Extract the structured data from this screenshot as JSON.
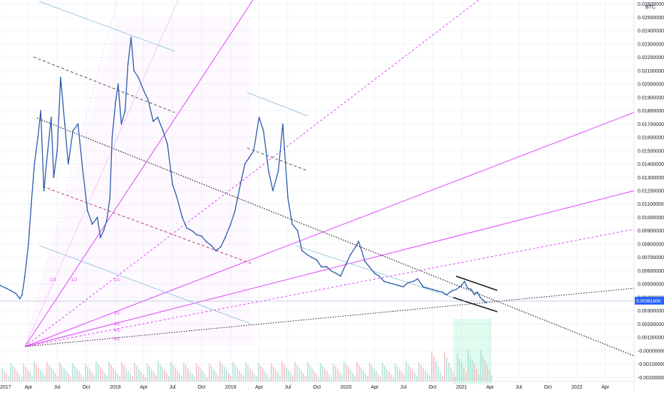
{
  "chart_data": {
    "type": "line",
    "title": "",
    "xlabel": "",
    "ylabel": "",
    "currency": "BTC",
    "ylim": [
      -0.0023,
      0.0263
    ],
    "xlim": [
      "2017-01-01",
      "2022-07-01"
    ],
    "last_price_label": "0.00361600",
    "grid": true,
    "legend": "none",
    "x_ticks": [
      {
        "date": "2017-01-01",
        "label": "2017"
      },
      {
        "date": "2017-04-01",
        "label": "Apr"
      },
      {
        "date": "2017-07-01",
        "label": "Jul"
      },
      {
        "date": "2017-10-01",
        "label": "Oct"
      },
      {
        "date": "2018-01-01",
        "label": "2018"
      },
      {
        "date": "2018-04-01",
        "label": "Apr"
      },
      {
        "date": "2018-07-01",
        "label": "Jul"
      },
      {
        "date": "2018-10-01",
        "label": "Oct"
      },
      {
        "date": "2019-01-01",
        "label": "2019"
      },
      {
        "date": "2019-04-01",
        "label": "Apr"
      },
      {
        "date": "2019-07-01",
        "label": "Jul"
      },
      {
        "date": "2019-10-01",
        "label": "Oct"
      },
      {
        "date": "2020-01-01",
        "label": "2020"
      },
      {
        "date": "2020-04-01",
        "label": "Apr"
      },
      {
        "date": "2020-07-01",
        "label": "Jul"
      },
      {
        "date": "2020-10-01",
        "label": "Oct"
      },
      {
        "date": "2021-01-01",
        "label": "2021"
      },
      {
        "date": "2021-04-01",
        "label": "Apr"
      },
      {
        "date": "2021-07-01",
        "label": "Jul"
      },
      {
        "date": "2021-10-01",
        "label": "Oct"
      },
      {
        "date": "2022-01-01",
        "label": "2022"
      },
      {
        "date": "2022-04-01",
        "label": "Apr"
      }
    ],
    "y_ticks": [
      {
        "value": 0.026,
        "label": "0.02600000"
      },
      {
        "value": 0.025,
        "label": "0.02500000"
      },
      {
        "value": 0.024,
        "label": "0.02400000"
      },
      {
        "value": 0.023,
        "label": "0.02300000"
      },
      {
        "value": 0.022,
        "label": "0.02200000"
      },
      {
        "value": 0.021,
        "label": "0.02100000"
      },
      {
        "value": 0.02,
        "label": "0.02000000"
      },
      {
        "value": 0.019,
        "label": "0.01900000"
      },
      {
        "value": 0.018,
        "label": "0.01800000"
      },
      {
        "value": 0.017,
        "label": "0.01700000"
      },
      {
        "value": 0.016,
        "label": "0.01600000"
      },
      {
        "value": 0.015,
        "label": "0.01500000"
      },
      {
        "value": 0.014,
        "label": "0.01400000"
      },
      {
        "value": 0.013,
        "label": "0.01300000"
      },
      {
        "value": 0.012,
        "label": "0.01200000"
      },
      {
        "value": 0.011,
        "label": "0.01100000"
      },
      {
        "value": 0.01,
        "label": "0.01000000"
      },
      {
        "value": 0.009,
        "label": "0.00900000"
      },
      {
        "value": 0.008,
        "label": "0.00800000"
      },
      {
        "value": 0.007,
        "label": "0.00700000"
      },
      {
        "value": 0.006,
        "label": "0.00600000"
      },
      {
        "value": 0.005,
        "label": "0.00500000"
      },
      {
        "value": 0.004,
        "label": "0.00400000"
      },
      {
        "value": 0.003,
        "label": "0.00300000"
      },
      {
        "value": 0.002,
        "label": "0.00200000"
      },
      {
        "value": 0.001,
        "label": "0.00100000"
      },
      {
        "value": 0.0,
        "label": "-0.00000000"
      },
      {
        "value": -0.001,
        "label": "-0.00100000"
      },
      {
        "value": -0.002,
        "label": "-0.00200000"
      }
    ],
    "series": [
      {
        "color": "#2a5aa8",
        "points": [
          {
            "x": "2017-01-01",
            "y": 0.0049
          },
          {
            "x": "2017-01-20",
            "y": 0.0047
          },
          {
            "x": "2017-02-05",
            "y": 0.0045
          },
          {
            "x": "2017-02-20",
            "y": 0.0043
          },
          {
            "x": "2017-03-05",
            "y": 0.0039
          },
          {
            "x": "2017-03-12",
            "y": 0.0042
          },
          {
            "x": "2017-03-20",
            "y": 0.0055
          },
          {
            "x": "2017-04-01",
            "y": 0.008
          },
          {
            "x": "2017-04-10",
            "y": 0.011
          },
          {
            "x": "2017-04-20",
            "y": 0.014
          },
          {
            "x": "2017-05-01",
            "y": 0.016
          },
          {
            "x": "2017-05-10",
            "y": 0.018
          },
          {
            "x": "2017-05-20",
            "y": 0.012
          },
          {
            "x": "2017-06-01",
            "y": 0.015
          },
          {
            "x": "2017-06-12",
            "y": 0.0175
          },
          {
            "x": "2017-06-20",
            "y": 0.013
          },
          {
            "x": "2017-07-01",
            "y": 0.015
          },
          {
            "x": "2017-07-12",
            "y": 0.0205
          },
          {
            "x": "2017-07-25",
            "y": 0.017
          },
          {
            "x": "2017-08-05",
            "y": 0.014
          },
          {
            "x": "2017-08-20",
            "y": 0.0165
          },
          {
            "x": "2017-09-05",
            "y": 0.017
          },
          {
            "x": "2017-09-20",
            "y": 0.0135
          },
          {
            "x": "2017-10-05",
            "y": 0.0105
          },
          {
            "x": "2017-10-20",
            "y": 0.0095
          },
          {
            "x": "2017-11-05",
            "y": 0.01
          },
          {
            "x": "2017-11-15",
            "y": 0.0085
          },
          {
            "x": "2017-11-25",
            "y": 0.009
          },
          {
            "x": "2017-12-05",
            "y": 0.0098
          },
          {
            "x": "2017-12-15",
            "y": 0.0115
          },
          {
            "x": "2017-12-22",
            "y": 0.016
          },
          {
            "x": "2018-01-01",
            "y": 0.0185
          },
          {
            "x": "2018-01-10",
            "y": 0.02
          },
          {
            "x": "2018-01-20",
            "y": 0.017
          },
          {
            "x": "2018-02-01",
            "y": 0.018
          },
          {
            "x": "2018-02-10",
            "y": 0.0215
          },
          {
            "x": "2018-02-20",
            "y": 0.0235
          },
          {
            "x": "2018-03-01",
            "y": 0.021
          },
          {
            "x": "2018-03-15",
            "y": 0.0205
          },
          {
            "x": "2018-04-01",
            "y": 0.0195
          },
          {
            "x": "2018-04-15",
            "y": 0.0188
          },
          {
            "x": "2018-05-01",
            "y": 0.0172
          },
          {
            "x": "2018-05-15",
            "y": 0.0175
          },
          {
            "x": "2018-06-01",
            "y": 0.0165
          },
          {
            "x": "2018-06-15",
            "y": 0.0155
          },
          {
            "x": "2018-07-01",
            "y": 0.0125
          },
          {
            "x": "2018-07-15",
            "y": 0.0115
          },
          {
            "x": "2018-08-01",
            "y": 0.01
          },
          {
            "x": "2018-08-15",
            "y": 0.0092
          },
          {
            "x": "2018-09-01",
            "y": 0.009
          },
          {
            "x": "2018-09-15",
            "y": 0.0087
          },
          {
            "x": "2018-10-01",
            "y": 0.0086
          },
          {
            "x": "2018-10-15",
            "y": 0.0082
          },
          {
            "x": "2018-11-01",
            "y": 0.0079
          },
          {
            "x": "2018-11-15",
            "y": 0.0075
          },
          {
            "x": "2018-12-01",
            "y": 0.0078
          },
          {
            "x": "2018-12-15",
            "y": 0.0085
          },
          {
            "x": "2019-01-01",
            "y": 0.0095
          },
          {
            "x": "2019-01-15",
            "y": 0.0105
          },
          {
            "x": "2019-02-01",
            "y": 0.0125
          },
          {
            "x": "2019-02-15",
            "y": 0.014
          },
          {
            "x": "2019-03-01",
            "y": 0.0145
          },
          {
            "x": "2019-03-15",
            "y": 0.015
          },
          {
            "x": "2019-04-01",
            "y": 0.0175
          },
          {
            "x": "2019-04-15",
            "y": 0.0165
          },
          {
            "x": "2019-05-01",
            "y": 0.0135
          },
          {
            "x": "2019-05-15",
            "y": 0.012
          },
          {
            "x": "2019-06-01",
            "y": 0.0135
          },
          {
            "x": "2019-06-15",
            "y": 0.017
          },
          {
            "x": "2019-07-01",
            "y": 0.0115
          },
          {
            "x": "2019-07-15",
            "y": 0.0095
          },
          {
            "x": "2019-08-01",
            "y": 0.009
          },
          {
            "x": "2019-08-15",
            "y": 0.0075
          },
          {
            "x": "2019-09-01",
            "y": 0.0072
          },
          {
            "x": "2019-09-15",
            "y": 0.007
          },
          {
            "x": "2019-10-01",
            "y": 0.0068
          },
          {
            "x": "2019-10-15",
            "y": 0.0063
          },
          {
            "x": "2019-11-01",
            "y": 0.0063
          },
          {
            "x": "2019-11-15",
            "y": 0.006
          },
          {
            "x": "2019-12-01",
            "y": 0.0058
          },
          {
            "x": "2019-12-15",
            "y": 0.0056
          },
          {
            "x": "2020-01-01",
            "y": 0.0065
          },
          {
            "x": "2020-01-15",
            "y": 0.0072
          },
          {
            "x": "2020-02-01",
            "y": 0.0078
          },
          {
            "x": "2020-02-10",
            "y": 0.0082
          },
          {
            "x": "2020-02-20",
            "y": 0.0075
          },
          {
            "x": "2020-03-01",
            "y": 0.0067
          },
          {
            "x": "2020-03-15",
            "y": 0.0063
          },
          {
            "x": "2020-04-01",
            "y": 0.0058
          },
          {
            "x": "2020-04-15",
            "y": 0.0056
          },
          {
            "x": "2020-05-01",
            "y": 0.0052
          },
          {
            "x": "2020-05-15",
            "y": 0.0051
          },
          {
            "x": "2020-06-01",
            "y": 0.005
          },
          {
            "x": "2020-06-15",
            "y": 0.0049
          },
          {
            "x": "2020-07-01",
            "y": 0.0048
          },
          {
            "x": "2020-07-15",
            "y": 0.0051
          },
          {
            "x": "2020-08-01",
            "y": 0.0052
          },
          {
            "x": "2020-08-15",
            "y": 0.0054
          },
          {
            "x": "2020-09-01",
            "y": 0.0048
          },
          {
            "x": "2020-09-15",
            "y": 0.0047
          },
          {
            "x": "2020-10-01",
            "y": 0.0046
          },
          {
            "x": "2020-10-15",
            "y": 0.0045
          },
          {
            "x": "2020-11-01",
            "y": 0.0044
          },
          {
            "x": "2020-11-15",
            "y": 0.0042
          },
          {
            "x": "2020-12-01",
            "y": 0.0045
          },
          {
            "x": "2020-12-15",
            "y": 0.0046
          },
          {
            "x": "2021-01-01",
            "y": 0.0049
          },
          {
            "x": "2021-01-10",
            "y": 0.0052
          },
          {
            "x": "2021-01-20",
            "y": 0.0047
          },
          {
            "x": "2021-02-01",
            "y": 0.0046
          },
          {
            "x": "2021-02-10",
            "y": 0.0042
          },
          {
            "x": "2021-02-20",
            "y": 0.0044
          },
          {
            "x": "2021-03-01",
            "y": 0.004
          },
          {
            "x": "2021-03-10",
            "y": 0.0038
          },
          {
            "x": "2021-03-20",
            "y": 0.0036
          }
        ]
      }
    ],
    "fan_labels": [
      "1/3",
      "1/2",
      "1/1",
      "2/1",
      "3/1",
      "4/1",
      "8/1"
    ]
  }
}
